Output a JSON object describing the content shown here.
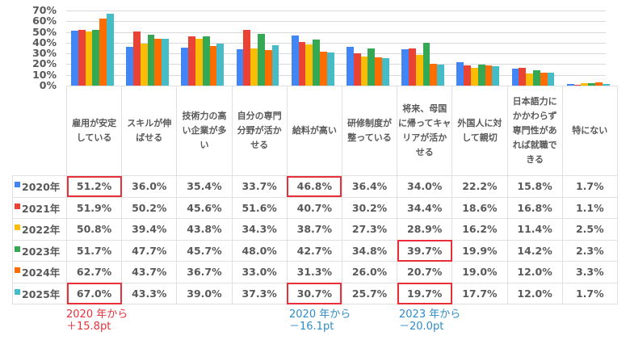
{
  "chart_data": {
    "type": "bar",
    "title": "",
    "xlabel": "",
    "ylabel": "",
    "ylim": [
      0,
      70
    ],
    "yticks": [
      "70%",
      "60%",
      "50%",
      "40%",
      "30%",
      "20%",
      "10%",
      "0%"
    ],
    "grid": true,
    "legend_position": "table-left",
    "categories": [
      "雇用が安定している",
      "スキルが伸ばせる",
      "技術力の高い企業が多い",
      "自分の専門分野が活かせる",
      "給料が高い",
      "研修制度が整っている",
      "将来、母国に帰ってキャリアが活かせる",
      "外国人に対して親切",
      "日本語力にかかわらず専門性があれば就職できる",
      "特にない"
    ],
    "series": [
      {
        "name": "2020年",
        "color": "#4285f4",
        "values": [
          51.2,
          36.0,
          35.4,
          33.7,
          46.8,
          36.4,
          34.0,
          22.2,
          15.8,
          1.7
        ]
      },
      {
        "name": "2021年",
        "color": "#ea4335",
        "values": [
          51.9,
          50.2,
          45.6,
          51.6,
          40.7,
          30.2,
          34.4,
          18.6,
          16.8,
          1.1
        ]
      },
      {
        "name": "2022年",
        "color": "#fbbc04",
        "values": [
          50.8,
          39.4,
          43.8,
          34.3,
          38.7,
          27.3,
          28.9,
          16.2,
          11.4,
          2.5
        ]
      },
      {
        "name": "2023年",
        "color": "#34a853",
        "values": [
          51.7,
          47.7,
          45.7,
          48.0,
          42.7,
          34.8,
          39.7,
          19.9,
          14.2,
          2.3
        ]
      },
      {
        "name": "2024年",
        "color": "#ff6d01",
        "values": [
          62.7,
          43.7,
          36.7,
          33.0,
          31.3,
          26.0,
          20.7,
          19.0,
          12.0,
          3.3
        ]
      },
      {
        "name": "2025年",
        "color": "#46bdc6",
        "values": [
          67.0,
          43.3,
          39.0,
          37.3,
          30.7,
          25.7,
          19.7,
          17.7,
          12.0,
          1.7
        ]
      }
    ],
    "annotations": [
      {
        "text": "2020 年から\n＋15.8pt",
        "color": "#e8303a",
        "category": "雇用が安定している"
      },
      {
        "text": "2020 年から\n－16.1pt",
        "color": "#2e8bc9",
        "category": "給料が高い"
      },
      {
        "text": "2023 年から\n－20.0pt",
        "color": "#2e8bc9",
        "category": "将来、母国に帰ってキャリアが活かせる"
      }
    ]
  },
  "table": {
    "headers": [
      [
        "雇用が安定",
        "している"
      ],
      [
        "スキルが伸",
        "ばせる"
      ],
      [
        "技術力の高",
        "い企業が多",
        "い"
      ],
      [
        "自分の専門",
        "分野が活か",
        "せる"
      ],
      [
        "給料が高い"
      ],
      [
        "研修制度が",
        "整っている"
      ],
      [
        "将来、母国",
        "に帰ってキャ",
        "リアが活か",
        "せる"
      ],
      [
        "外国人に対",
        "して親切"
      ],
      [
        "日本語力に",
        "かかわらず",
        "専門性があ",
        "れば就職で",
        "きる"
      ],
      [
        "特にない"
      ]
    ],
    "rows": [
      {
        "year": "2020年",
        "color": "#4285f4",
        "cells": [
          "51.2%",
          "36.0%",
          "35.4%",
          "33.7%",
          "46.8%",
          "36.4%",
          "34.0%",
          "22.2%",
          "15.8%",
          "1.7%"
        ]
      },
      {
        "year": "2021年",
        "color": "#ea4335",
        "cells": [
          "51.9%",
          "50.2%",
          "45.6%",
          "51.6%",
          "40.7%",
          "30.2%",
          "34.4%",
          "18.6%",
          "16.8%",
          "1.1%"
        ]
      },
      {
        "year": "2022年",
        "color": "#fbbc04",
        "cells": [
          "50.8%",
          "39.4%",
          "43.8%",
          "34.3%",
          "38.7%",
          "27.3%",
          "28.9%",
          "16.2%",
          "11.4%",
          "2.5%"
        ]
      },
      {
        "year": "2023年",
        "color": "#34a853",
        "cells": [
          "51.7%",
          "47.7%",
          "45.7%",
          "48.0%",
          "42.7%",
          "34.8%",
          "39.7%",
          "19.9%",
          "14.2%",
          "2.3%"
        ]
      },
      {
        "year": "2024年",
        "color": "#ff6d01",
        "cells": [
          "62.7%",
          "43.7%",
          "36.7%",
          "33.0%",
          "31.3%",
          "26.0%",
          "20.7%",
          "19.0%",
          "12.0%",
          "3.3%"
        ]
      },
      {
        "year": "2025年",
        "color": "#46bdc6",
        "cells": [
          "67.0%",
          "43.3%",
          "39.0%",
          "37.3%",
          "30.7%",
          "25.7%",
          "19.7%",
          "17.7%",
          "12.0%",
          "1.7%"
        ]
      }
    ],
    "highlights": [
      [
        0,
        0
      ],
      [
        5,
        0
      ],
      [
        0,
        4
      ],
      [
        5,
        4
      ],
      [
        3,
        6
      ],
      [
        5,
        6
      ]
    ]
  },
  "notes": [
    {
      "line1": "2020 年から",
      "line2": "＋15.8pt",
      "color": "#e8303a"
    },
    {
      "line1": "2020 年から",
      "line2": "－16.1pt",
      "color": "#2e8bc9"
    },
    {
      "line1": "2023 年から",
      "line2": "－20.0pt",
      "color": "#2e8bc9"
    }
  ]
}
